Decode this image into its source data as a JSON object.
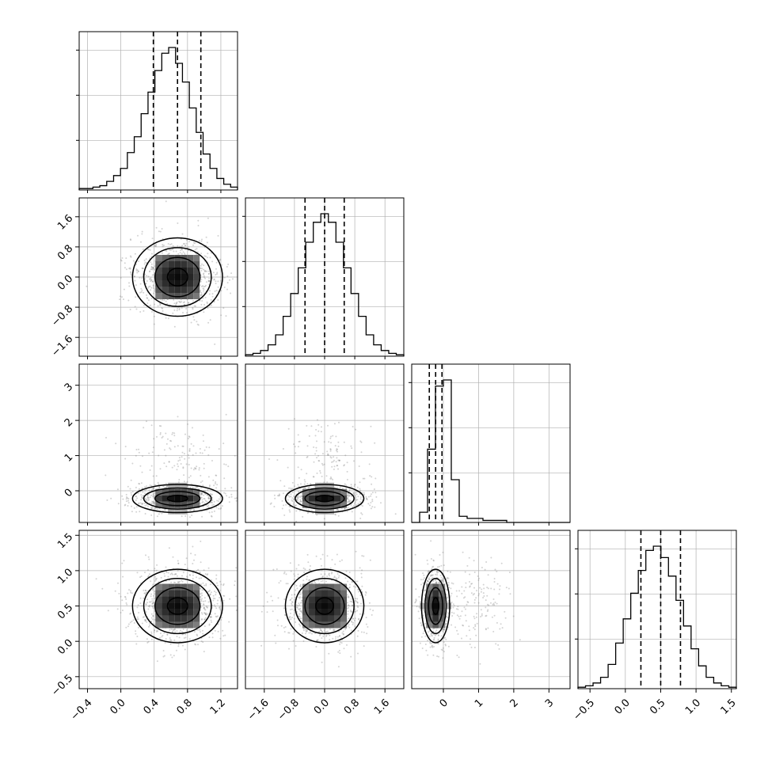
{
  "chart_data": {
    "type": "corner",
    "parameters": [
      {
        "hist_counts": [
          1,
          1,
          2,
          3,
          6,
          10,
          15,
          26,
          37,
          53,
          68,
          83,
          95,
          99,
          88,
          75,
          57,
          40,
          25,
          15,
          8,
          4,
          2
        ],
        "quantiles": [
          0.39,
          0.68,
          0.96
        ]
      },
      {
        "hist_counts": [
          1,
          2,
          4,
          8,
          15,
          28,
          44,
          62,
          80,
          94,
          100,
          94,
          80,
          62,
          44,
          28,
          15,
          8,
          4,
          2,
          1
        ],
        "quantiles": [
          -0.52,
          0.0,
          0.52
        ]
      },
      {
        "hist_counts": [
          0,
          5,
          36,
          67,
          70,
          21,
          3,
          2,
          2,
          1,
          1,
          1,
          0,
          0,
          0,
          0,
          0,
          0,
          0,
          0
        ],
        "quantiles": [
          -0.4,
          -0.22,
          -0.04
        ]
      },
      {
        "hist_counts": [
          1,
          2,
          4,
          8,
          17,
          32,
          49,
          67,
          83,
          97,
          100,
          92,
          79,
          62,
          44,
          28,
          16,
          8,
          4,
          2,
          1
        ],
        "quantiles": [
          0.22,
          0.5,
          0.78
        ]
      }
    ],
    "ranges": [
      [
        -0.5,
        1.4
      ],
      [
        -2.1,
        2.1
      ],
      [
        -0.9,
        3.6
      ],
      [
        -0.67,
        1.57
      ]
    ],
    "x_ticks": [
      [
        "−0.4",
        "0.0",
        "0.4",
        "0.8",
        "1.2"
      ],
      [
        "−1.6",
        "−0.8",
        "0.0",
        "0.8",
        "1.6"
      ],
      [
        "0",
        "1",
        "2",
        "3"
      ],
      [
        "−0.5",
        "0.0",
        "0.5",
        "1.0",
        "1.5"
      ]
    ],
    "x_tick_values": [
      [
        -0.4,
        0.0,
        0.4,
        0.8,
        1.2
      ],
      [
        -1.6,
        -0.8,
        0.0,
        0.8,
        1.6
      ],
      [
        0,
        1,
        2,
        3
      ],
      [
        -0.5,
        0.0,
        0.5,
        1.0,
        1.5
      ]
    ],
    "y_ticks": {
      "row1": [
        "1.6",
        "0.8",
        "0.0",
        "−0.8",
        "−1.6"
      ],
      "row2": [
        "3",
        "2",
        "1",
        "0"
      ],
      "row3": [
        "1.5",
        "1.0",
        "0.5",
        "0.0",
        "−0.5"
      ]
    },
    "y_tick_values": {
      "row1": [
        1.6,
        0.8,
        0.0,
        -0.8,
        -1.6
      ],
      "row2": [
        3,
        2,
        1,
        0
      ],
      "row3": [
        1.5,
        1.0,
        0.5,
        0.0,
        -0.5
      ]
    },
    "centers": [
      0.68,
      0.0,
      -0.22,
      0.5
    ],
    "sigmas": [
      0.27,
      0.52,
      0.2,
      0.26
    ],
    "grid": true,
    "colors": {
      "line": "#000000",
      "grid": "#b0b0b0",
      "scatter": "#808080"
    }
  }
}
